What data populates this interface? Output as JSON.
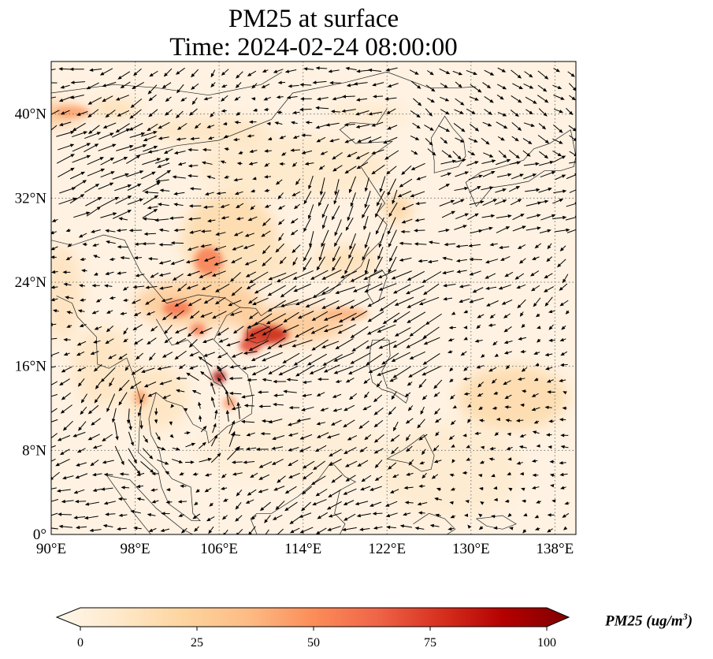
{
  "title": {
    "line1": "PM25 at surface",
    "line2": "Time: 2024-02-24 08:00:00"
  },
  "map": {
    "lon_range": [
      90,
      140
    ],
    "lat_range": [
      0,
      45
    ],
    "lon_ticks": [
      90,
      98,
      106,
      114,
      122,
      130,
      138
    ],
    "lat_ticks": [
      0,
      8,
      16,
      24,
      32,
      40
    ],
    "lon_tick_labels": [
      "90°E",
      "98°E",
      "106°E",
      "114°E",
      "122°E",
      "130°E",
      "138°E"
    ],
    "lat_tick_labels": [
      "0°",
      "8°N",
      "16°N",
      "24°N",
      "32°N",
      "40°N"
    ],
    "gridlines": true,
    "colormap": "OrRd",
    "wind_vectors": true
  },
  "colorbar": {
    "label_prefix": "PM25 (ug/m",
    "label_power": "3",
    "label_suffix": ")",
    "min": 0,
    "max": 100,
    "ticks": [
      0,
      25,
      50,
      75,
      100
    ],
    "tick_labels": [
      "0",
      "25",
      "50",
      "75",
      "100"
    ],
    "extend": "both",
    "colors": [
      "#fff7ec",
      "#fee8c8",
      "#fdd49e",
      "#fdbb84",
      "#fc8d59",
      "#ef6548",
      "#d7301f",
      "#b30000",
      "#7f0000"
    ]
  }
}
